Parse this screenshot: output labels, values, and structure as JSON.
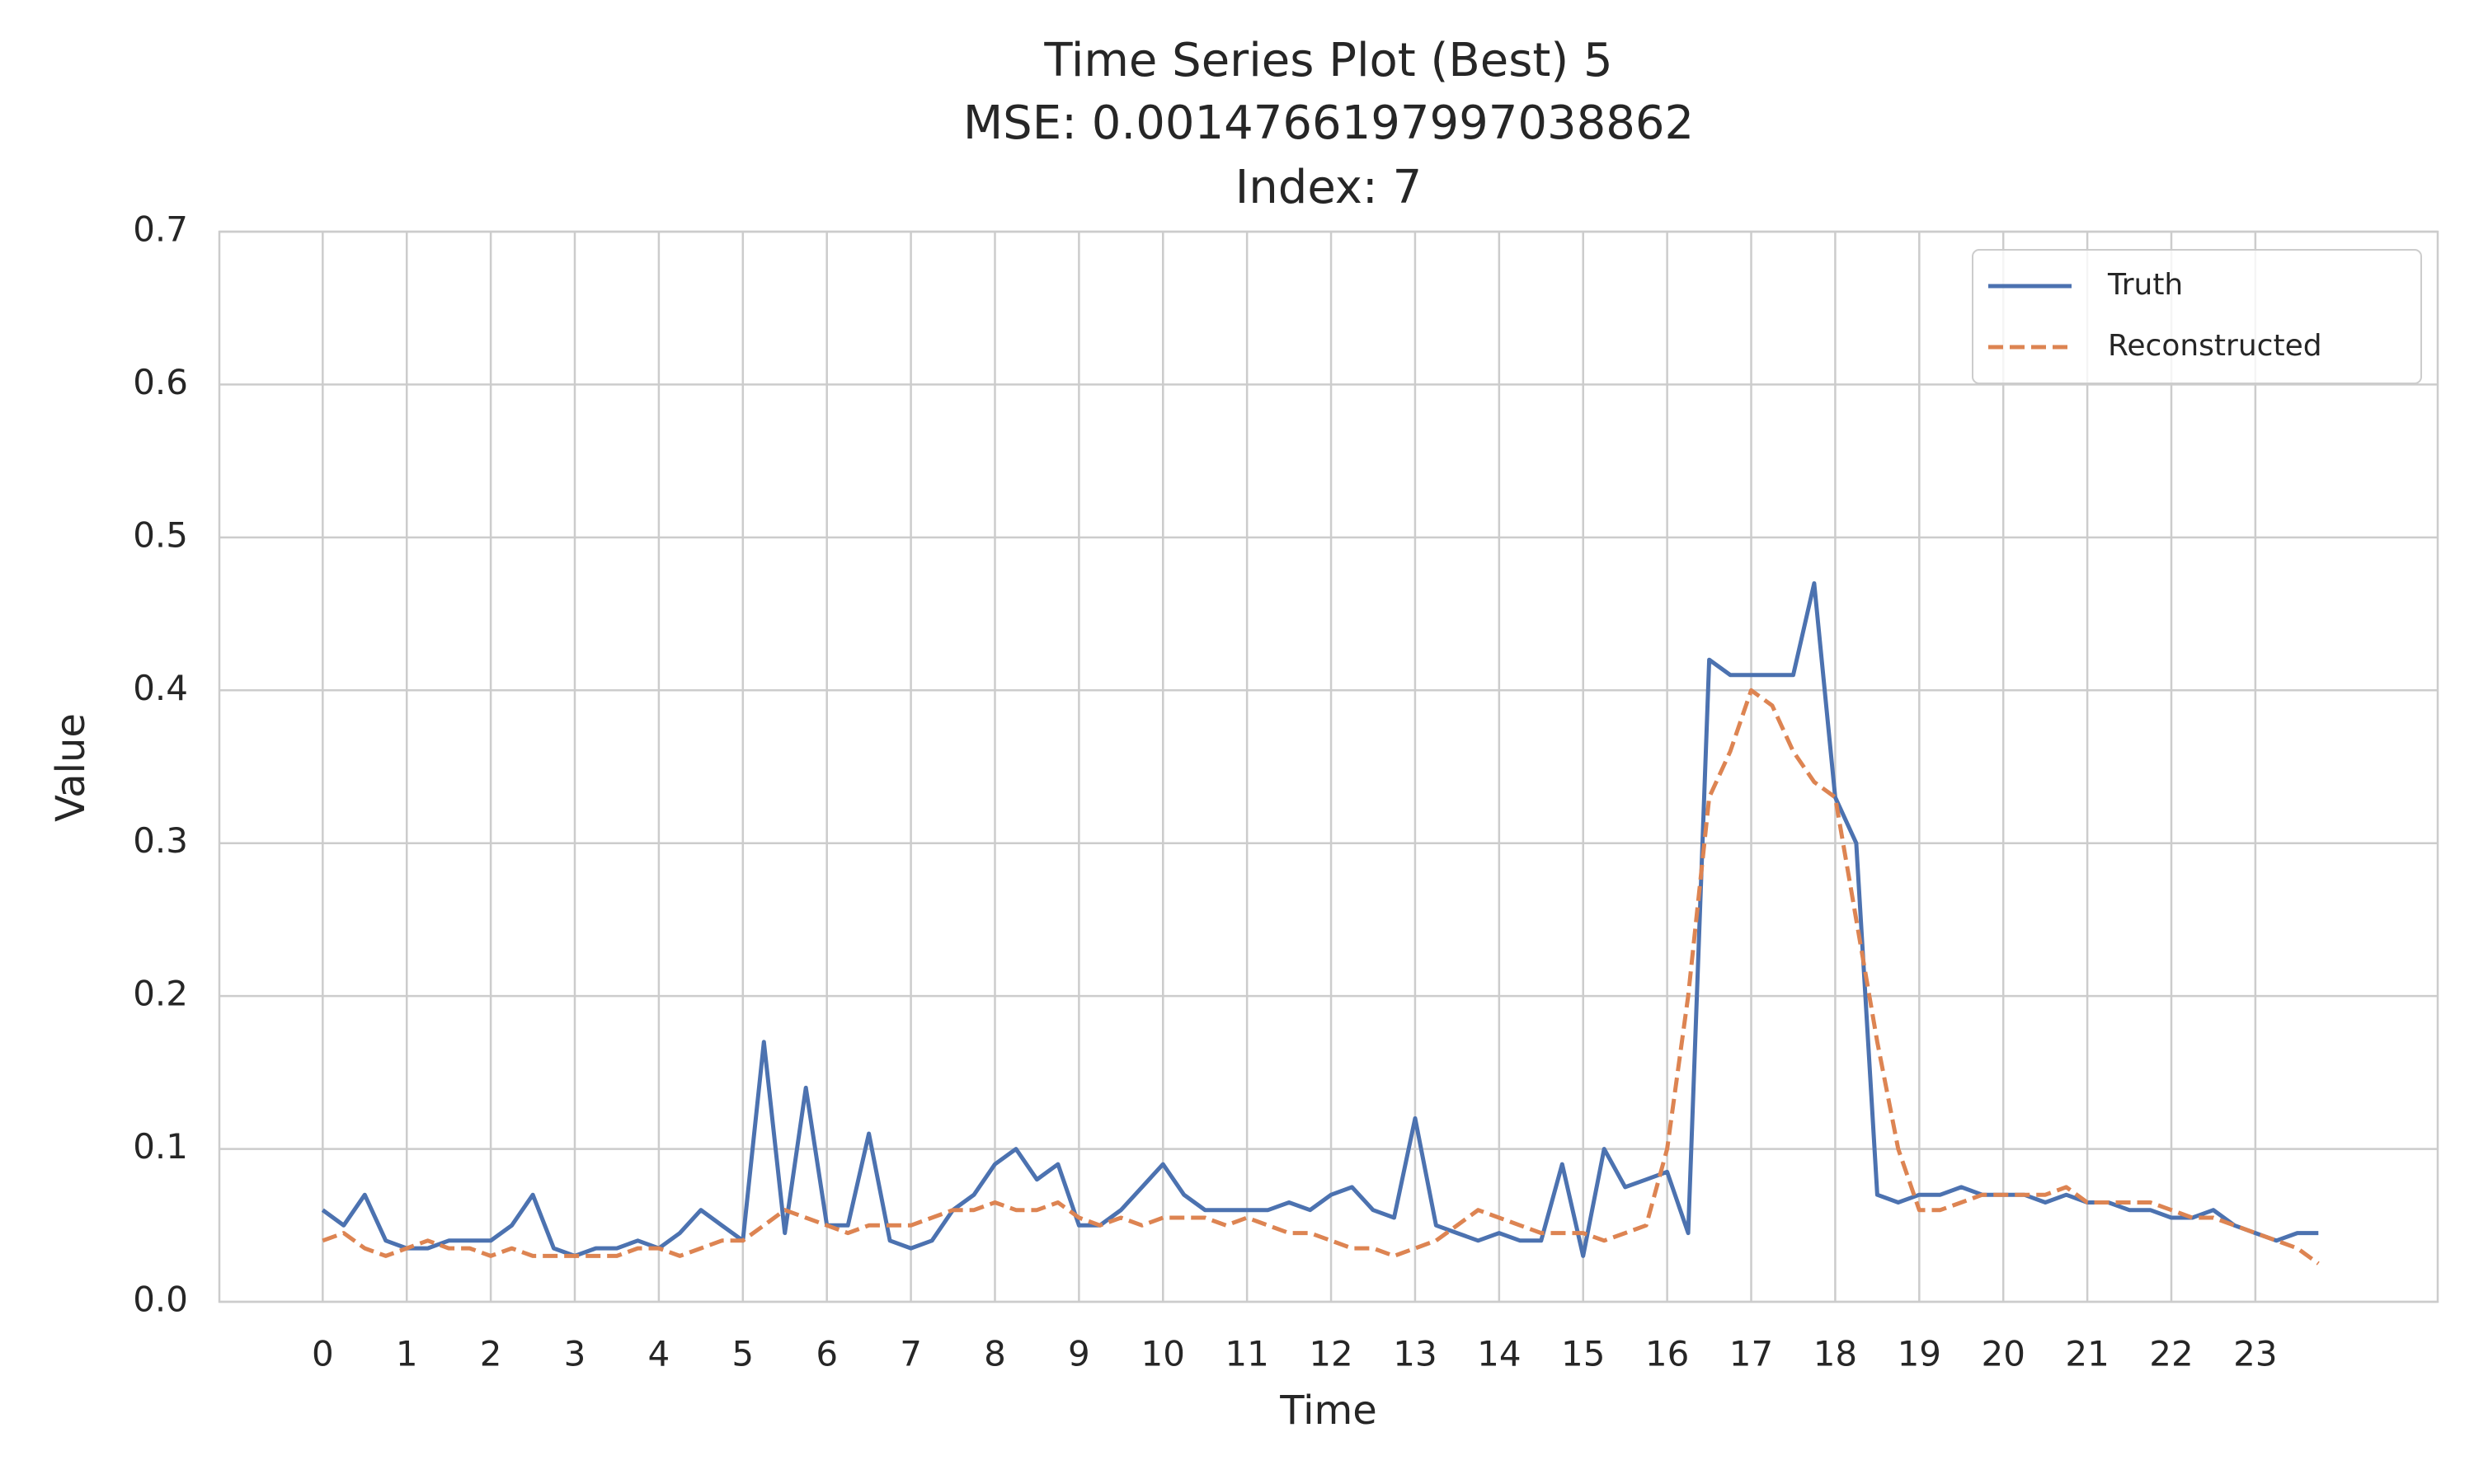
{
  "chart_data": {
    "type": "line",
    "title": [
      "Time Series Plot (Best) 5",
      "MSE: 0.0014766197997038862",
      "Index: 7"
    ],
    "x_label": "Time",
    "y_label": "Value",
    "x": [
      0,
      0.25,
      0.5,
      0.75,
      1,
      1.25,
      1.5,
      1.75,
      2,
      2.25,
      2.5,
      2.75,
      3,
      3.25,
      3.5,
      3.75,
      4,
      4.25,
      4.5,
      4.75,
      5,
      5.25,
      5.5,
      5.75,
      6,
      6.25,
      6.5,
      6.75,
      7,
      7.25,
      7.5,
      7.75,
      8,
      8.25,
      8.5,
      8.75,
      9,
      9.25,
      9.5,
      9.75,
      10,
      10.25,
      10.5,
      10.75,
      11,
      11.25,
      11.5,
      11.75,
      12,
      12.25,
      12.5,
      12.75,
      13,
      13.25,
      13.5,
      13.75,
      14,
      14.25,
      14.5,
      14.75,
      15,
      15.25,
      15.5,
      15.75,
      16,
      16.25,
      16.5,
      16.75,
      17,
      17.25,
      17.5,
      17.75,
      18,
      18.25,
      18.5,
      18.75,
      19,
      19.25,
      19.5,
      19.75,
      20,
      20.25,
      20.5,
      20.75,
      21,
      21.25,
      21.5,
      21.75,
      22,
      22.25,
      22.5,
      22.75,
      23,
      23.25,
      23.5,
      23.75
    ],
    "series": [
      {
        "name": "Truth",
        "color": "#4c72b0",
        "linestyle": "solid",
        "values": [
          0.06,
          0.05,
          0.07,
          0.04,
          0.035,
          0.035,
          0.04,
          0.04,
          0.04,
          0.05,
          0.07,
          0.035,
          0.03,
          0.035,
          0.035,
          0.04,
          0.035,
          0.045,
          0.06,
          0.05,
          0.04,
          0.17,
          0.045,
          0.14,
          0.05,
          0.05,
          0.11,
          0.04,
          0.035,
          0.04,
          0.06,
          0.07,
          0.09,
          0.1,
          0.08,
          0.09,
          0.05,
          0.05,
          0.06,
          0.075,
          0.09,
          0.07,
          0.06,
          0.06,
          0.06,
          0.06,
          0.065,
          0.06,
          0.07,
          0.075,
          0.06,
          0.055,
          0.12,
          0.05,
          0.045,
          0.04,
          0.045,
          0.04,
          0.04,
          0.09,
          0.03,
          0.1,
          0.075,
          0.08,
          0.085,
          0.045,
          0.42,
          0.41,
          0.41,
          0.41,
          0.41,
          0.47,
          0.33,
          0.3,
          0.07,
          0.065,
          0.07,
          0.07,
          0.075,
          0.07,
          0.07,
          0.07,
          0.065,
          0.07,
          0.065,
          0.065,
          0.06,
          0.06,
          0.055,
          0.055,
          0.06,
          0.05,
          0.045,
          0.04,
          0.045,
          0.045
        ]
      },
      {
        "name": "Reconstructed",
        "color": "#dd8452",
        "linestyle": "dashed",
        "values": [
          0.04,
          0.045,
          0.035,
          0.03,
          0.035,
          0.04,
          0.035,
          0.035,
          0.03,
          0.035,
          0.03,
          0.03,
          0.03,
          0.03,
          0.03,
          0.035,
          0.035,
          0.03,
          0.035,
          0.04,
          0.04,
          0.05,
          0.06,
          0.055,
          0.05,
          0.045,
          0.05,
          0.05,
          0.05,
          0.055,
          0.06,
          0.06,
          0.065,
          0.06,
          0.06,
          0.065,
          0.055,
          0.05,
          0.055,
          0.05,
          0.055,
          0.055,
          0.055,
          0.05,
          0.055,
          0.05,
          0.045,
          0.045,
          0.04,
          0.035,
          0.035,
          0.03,
          0.035,
          0.04,
          0.05,
          0.06,
          0.055,
          0.05,
          0.045,
          0.045,
          0.045,
          0.04,
          0.045,
          0.05,
          0.1,
          0.2,
          0.33,
          0.36,
          0.4,
          0.39,
          0.36,
          0.34,
          0.33,
          0.25,
          0.17,
          0.1,
          0.06,
          0.06,
          0.065,
          0.07,
          0.07,
          0.07,
          0.07,
          0.075,
          0.065,
          0.065,
          0.065,
          0.065,
          0.06,
          0.055,
          0.055,
          0.05,
          0.045,
          0.04,
          0.035,
          0.025
        ]
      }
    ],
    "xlim": [
      -1.23,
      25.17
    ],
    "ylim": [
      0,
      0.7
    ],
    "xticks": [
      0,
      1,
      2,
      3,
      4,
      5,
      6,
      7,
      8,
      9,
      10,
      11,
      12,
      13,
      14,
      15,
      16,
      17,
      18,
      19,
      20,
      21,
      22,
      23
    ],
    "yticks": [
      {
        "value": 0,
        "label": "0.0"
      },
      0.1,
      0.2,
      0.3,
      0.4,
      0.5,
      0.6,
      0.7
    ],
    "grid": true,
    "legend": "upper right"
  }
}
